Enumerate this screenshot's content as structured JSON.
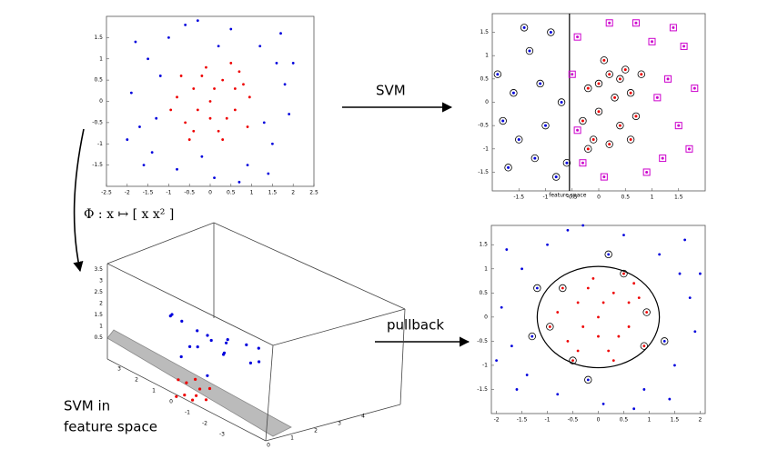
{
  "labels": {
    "svm": "SVM",
    "pullback": "pullback",
    "phi": "Φ : x ↦ [ x x² ]",
    "svm_feature_1": "SVM in",
    "svm_feature_2": "feature space",
    "feature_space_small": "feature space"
  },
  "points": {
    "blue": [
      [
        -1.9,
        0.2
      ],
      [
        -1.7,
        -0.6
      ],
      [
        -1.5,
        1.0
      ],
      [
        -1.4,
        -1.2
      ],
      [
        -1.0,
        1.5
      ],
      [
        -0.8,
        -1.6
      ],
      [
        -0.3,
        1.9
      ],
      [
        0.1,
        -1.8
      ],
      [
        0.5,
        1.7
      ],
      [
        0.9,
        -1.5
      ],
      [
        1.2,
        1.3
      ],
      [
        1.5,
        -1.0
      ],
      [
        1.8,
        0.4
      ],
      [
        1.9,
        -0.3
      ],
      [
        1.6,
        0.9
      ],
      [
        -1.2,
        0.6
      ],
      [
        -1.3,
        -0.4
      ],
      [
        0.2,
        1.3
      ],
      [
        -0.2,
        -1.3
      ],
      [
        1.3,
        -0.5
      ],
      [
        -0.6,
        1.8
      ],
      [
        0.7,
        -1.9
      ],
      [
        -1.8,
        1.4
      ],
      [
        1.7,
        1.6
      ],
      [
        -1.6,
        -1.5
      ],
      [
        1.4,
        -1.7
      ],
      [
        2.0,
        0.9
      ],
      [
        -2.0,
        -0.9
      ]
    ],
    "red": [
      [
        0,
        0
      ],
      [
        0.3,
        0.5
      ],
      [
        -0.4,
        0.3
      ],
      [
        0.6,
        -0.2
      ],
      [
        -0.6,
        -0.5
      ],
      [
        0.2,
        -0.7
      ],
      [
        -0.1,
        0.8
      ],
      [
        0.8,
        0.4
      ],
      [
        -0.8,
        0.1
      ],
      [
        0.5,
        0.9
      ],
      [
        -0.5,
        -0.9
      ],
      [
        0.9,
        -0.6
      ],
      [
        -0.3,
        -0.2
      ],
      [
        0.1,
        0.3
      ],
      [
        0.4,
        -0.4
      ],
      [
        -0.7,
        0.6
      ],
      [
        0.7,
        0.7
      ],
      [
        -0.2,
        0.6
      ],
      [
        0.3,
        -0.9
      ],
      [
        0.95,
        0.1
      ],
      [
        -0.95,
        -0.2
      ],
      [
        0.0,
        -0.4
      ],
      [
        0.6,
        0.3
      ],
      [
        -0.4,
        -0.7
      ]
    ]
  },
  "input_plot": {
    "xlim": [
      -2.5,
      2.5
    ],
    "ylim": [
      -2,
      2
    ],
    "xticks": [
      -2.5,
      -2,
      -1.5,
      -1,
      -0.5,
      0,
      0.5,
      1,
      1.5,
      2,
      2.5
    ],
    "yticks": [
      -1.5,
      -1,
      -0.5,
      0,
      0.5,
      1,
      1.5
    ]
  },
  "svm_plot": {
    "xlim": [
      -2,
      2
    ],
    "ylim": [
      -1.9,
      1.9
    ],
    "xticks": [
      -1.5,
      -1,
      -0.5,
      0,
      0.5,
      1,
      1.5
    ],
    "yticks": [
      -1.5,
      -1,
      -0.5,
      0,
      0.5,
      1,
      1.5
    ],
    "boundary_x": -0.55,
    "blue": [
      [
        -1.9,
        0.6
      ],
      [
        -1.8,
        -0.4
      ],
      [
        -1.6,
        0.2
      ],
      [
        -1.5,
        -0.8
      ],
      [
        -1.3,
        1.1
      ],
      [
        -1.2,
        -1.2
      ],
      [
        -1.1,
        0.4
      ],
      [
        -1.0,
        -0.5
      ],
      [
        -0.9,
        1.5
      ],
      [
        -0.8,
        -1.6
      ],
      [
        -0.7,
        0.0
      ],
      [
        -0.6,
        -1.3
      ],
      [
        -1.4,
        1.6
      ],
      [
        -1.7,
        -1.4
      ]
    ],
    "red": [
      [
        -0.2,
        0.3
      ],
      [
        0.0,
        -0.2
      ],
      [
        0.2,
        0.6
      ],
      [
        0.4,
        -0.5
      ],
      [
        0.6,
        0.2
      ],
      [
        0.1,
        0.9
      ],
      [
        -0.1,
        -0.8
      ],
      [
        0.3,
        0.1
      ],
      [
        0.5,
        0.7
      ],
      [
        0.7,
        -0.3
      ],
      [
        -0.3,
        -0.4
      ],
      [
        0.2,
        -0.9
      ],
      [
        0.6,
        -0.8
      ],
      [
        0.4,
        0.5
      ],
      [
        0.0,
        0.4
      ],
      [
        -0.2,
        -1.0
      ],
      [
        0.8,
        0.6
      ]
    ],
    "magenta": [
      [
        -0.4,
        1.4
      ],
      [
        -0.3,
        -1.3
      ],
      [
        0.2,
        1.7
      ],
      [
        0.1,
        -1.6
      ],
      [
        1.0,
        1.3
      ],
      [
        1.2,
        -1.2
      ],
      [
        1.3,
        0.5
      ],
      [
        1.5,
        -0.5
      ],
      [
        1.8,
        0.3
      ],
      [
        1.6,
        1.2
      ],
      [
        1.7,
        -1.0
      ],
      [
        0.9,
        -1.5
      ],
      [
        1.1,
        0.1
      ],
      [
        -0.5,
        0.6
      ],
      [
        -0.4,
        -0.6
      ],
      [
        1.4,
        1.6
      ],
      [
        0.7,
        1.7
      ]
    ]
  },
  "pullback_plot": {
    "xlim": [
      -2.1,
      2.1
    ],
    "ylim": [
      -2,
      1.9
    ],
    "xticks": [
      -2,
      -1.5,
      -1,
      -0.5,
      0,
      0.5,
      1,
      1.5,
      2
    ],
    "yticks": [
      -1.5,
      -1,
      -0.5,
      0,
      0.5,
      1,
      1.5
    ],
    "boundary": {
      "cx": 0,
      "cy": 0,
      "rx": 1.2,
      "ry": 1.05
    },
    "support_blue": [
      15,
      16,
      17,
      18,
      19
    ],
    "support_red": [
      9,
      10,
      11,
      15,
      19,
      20
    ]
  },
  "feature_plot": {
    "xticks": [
      0,
      1,
      2,
      3,
      4
    ],
    "yticks": [
      3,
      2,
      1,
      0,
      -1,
      -2,
      -3
    ],
    "zticks": [
      3.5,
      3,
      2.5,
      2,
      1.5,
      1,
      0.5
    ],
    "blue": [
      [
        0.5,
        1,
        3.2
      ],
      [
        0.8,
        1.5,
        2.8
      ],
      [
        1.2,
        0.5,
        2.5
      ],
      [
        1.5,
        1.8,
        2.2
      ],
      [
        2,
        1,
        1.8
      ],
      [
        2.5,
        0.6,
        1.5
      ],
      [
        3,
        1.2,
        1.2
      ],
      [
        3.5,
        0.8,
        1.0
      ],
      [
        1,
        0.2,
        2.0
      ],
      [
        1.8,
        -0.2,
        1.6
      ],
      [
        2.2,
        0.3,
        1.3
      ],
      [
        2.8,
        -0.4,
        1.0
      ],
      [
        3.3,
        -0.2,
        0.8
      ],
      [
        0.6,
        0.6,
        1.5
      ],
      [
        1.4,
        1.2,
        1.4
      ],
      [
        0.9,
        -0.5,
        1.1
      ],
      [
        2.6,
        1.6,
        1.1
      ],
      [
        3.8,
        0.5,
        0.9
      ]
    ],
    "red": [
      [
        0.3,
        0,
        0.2
      ],
      [
        0.5,
        -0.4,
        0.3
      ],
      [
        0.8,
        -0.2,
        0.4
      ],
      [
        0.6,
        0.3,
        0.5
      ],
      [
        0.2,
        -0.6,
        0.3
      ],
      [
        1.0,
        -0.5,
        0.5
      ],
      [
        0.4,
        0.5,
        0.6
      ],
      [
        0.9,
        0.2,
        0.6
      ],
      [
        0.1,
        0.2,
        0.1
      ],
      [
        0.7,
        -0.7,
        0.2
      ]
    ]
  }
}
